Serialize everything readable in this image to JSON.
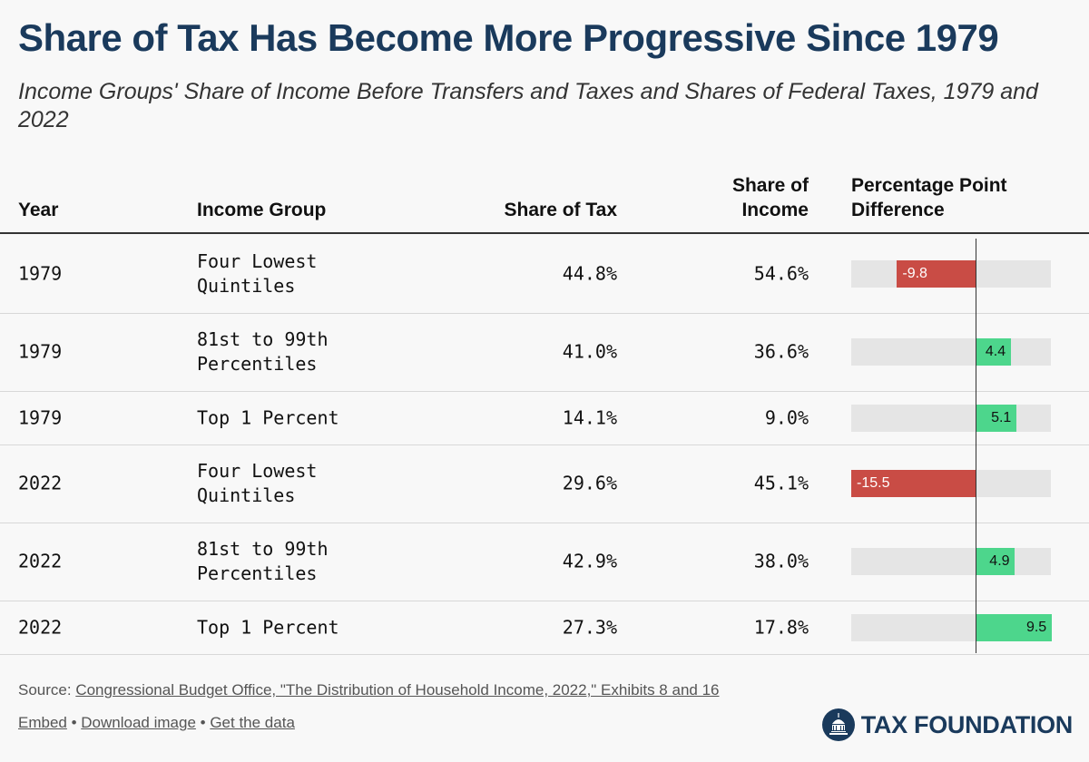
{
  "title": "Share of Tax Has Become More Progressive Since 1979",
  "subtitle": "Income Groups' Share of Income Before Transfers and Taxes and Shares of Federal Taxes, 1979 and 2022",
  "headers": {
    "year": "Year",
    "group": "Income Group",
    "tax": "Share of Tax",
    "income_line1": "Share of",
    "income_line2": "Income",
    "diff_line1": "Percentage Point",
    "diff_line2": "Difference"
  },
  "chart_data": {
    "type": "table",
    "columns": [
      "Year",
      "Income Group",
      "Share of Tax",
      "Share of Income",
      "Percentage Point Difference"
    ],
    "rows": [
      {
        "year": "1979",
        "group": "Four Lowest Quintiles",
        "tax": "44.8%",
        "income": "54.6%",
        "diff": -9.8,
        "diff_label": "-9.8"
      },
      {
        "year": "1979",
        "group": "81st to 99th Percentiles",
        "tax": "41.0%",
        "income": "36.6%",
        "diff": 4.4,
        "diff_label": "4.4"
      },
      {
        "year": "1979",
        "group": "Top 1 Percent",
        "tax": "14.1%",
        "income": "9.0%",
        "diff": 5.1,
        "diff_label": "5.1"
      },
      {
        "year": "2022",
        "group": "Four Lowest Quintiles",
        "tax": "29.6%",
        "income": "45.1%",
        "diff": -15.5,
        "diff_label": "-15.5"
      },
      {
        "year": "2022",
        "group": "81st to 99th Percentiles",
        "tax": "42.9%",
        "income": "38.0%",
        "diff": 4.9,
        "diff_label": "4.9"
      },
      {
        "year": "2022",
        "group": "Top 1 Percent",
        "tax": "27.3%",
        "income": "17.8%",
        "diff": 9.5,
        "diff_label": "9.5"
      }
    ],
    "diff_range": [
      -15.5,
      9.5
    ],
    "colors": {
      "negative": "#c94c45",
      "positive": "#4dd68c",
      "track": "#e5e5e5"
    }
  },
  "footer": {
    "source_prefix": "Source: ",
    "source_link": "Congressional Budget Office, \"The Distribution of Household Income, 2022,\" Exhibits 8 and 16",
    "embed": "Embed",
    "sep1": " • ",
    "download": "Download image",
    "sep2": " • ",
    "get_data": "Get the data",
    "logo_text": "TAX FOUNDATION"
  }
}
